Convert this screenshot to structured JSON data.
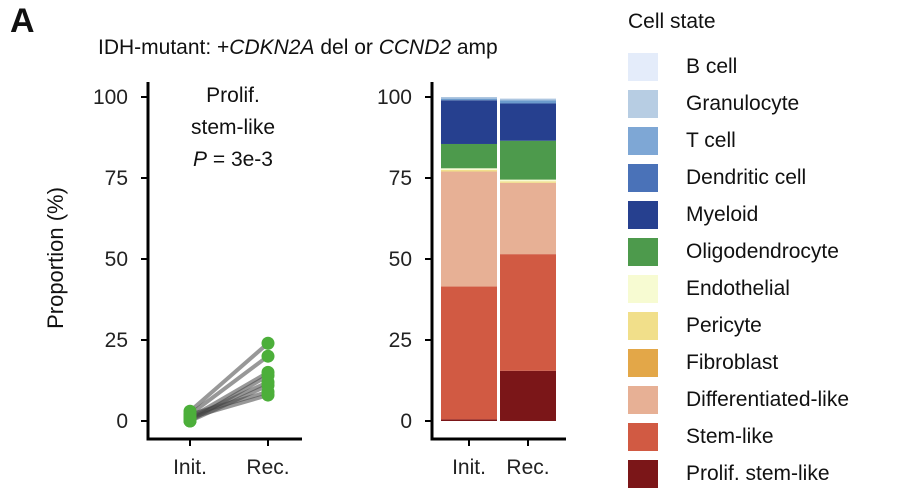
{
  "panel_label": "A",
  "title": {
    "prefix": "IDH-mutant: +",
    "gene1": "CDKN2A",
    "mid": " del or ",
    "gene2": "CCND2",
    "suffix": " amp"
  },
  "annotation": {
    "line1": "Prolif.",
    "line2": "stem-like",
    "p_symbol": "P",
    "p_rest": " = 3e-3"
  },
  "chart_data": [
    {
      "type": "scatter",
      "subtype": "paired-lines",
      "title": "Prolif. stem-like",
      "ylabel": "Proportion (%)",
      "xlabel": "",
      "categories": [
        "Init.",
        "Rec."
      ],
      "ylim": [
        0,
        100
      ],
      "yticks": [
        0,
        25,
        50,
        75,
        100
      ],
      "point_color": "#4caf3a",
      "line_color": "#444444",
      "pairs": [
        [
          3,
          24
        ],
        [
          2,
          20
        ],
        [
          1,
          15
        ],
        [
          0,
          14
        ],
        [
          1,
          12
        ],
        [
          0,
          11
        ],
        [
          2,
          9
        ],
        [
          1,
          8
        ]
      ],
      "p_value": "3e-3"
    },
    {
      "type": "bar",
      "subtype": "stacked",
      "categories": [
        "Init.",
        "Rec."
      ],
      "ylim": [
        0,
        100
      ],
      "yticks": [
        0,
        25,
        50,
        75,
        100
      ],
      "series": [
        {
          "name": "Prolif. stem-like",
          "color": "#7b1618",
          "values": [
            0.5,
            15.5
          ]
        },
        {
          "name": "Stem-like",
          "color": "#d15a43",
          "values": [
            41,
            36
          ]
        },
        {
          "name": "Differentiated-like",
          "color": "#e7b095",
          "values": [
            35.5,
            22
          ]
        },
        {
          "name": "Fibroblast",
          "color": "#e3a748",
          "values": [
            0,
            0
          ]
        },
        {
          "name": "Pericyte",
          "color": "#f1df8a",
          "values": [
            0.5,
            0.5
          ]
        },
        {
          "name": "Endothelial",
          "color": "#f7fbd2",
          "values": [
            0.5,
            0.5
          ]
        },
        {
          "name": "Oligodendrocyte",
          "color": "#4d9a4c",
          "values": [
            7.5,
            12
          ]
        },
        {
          "name": "Dendritic cell",
          "color": "#4a72b8",
          "values": [
            0,
            0
          ]
        },
        {
          "name": "Myeloid",
          "color": "#26408f",
          "values": [
            13.5,
            11.5
          ]
        },
        {
          "name": "T cell",
          "color": "#6c9bcc",
          "values": [
            0.5,
            1
          ]
        },
        {
          "name": "Granulocyte",
          "color": "#adc6e0",
          "values": [
            0.5,
            0.5
          ]
        },
        {
          "name": "B cell",
          "color": "#e4ecfa",
          "values": [
            0,
            0
          ]
        }
      ]
    }
  ],
  "legend": {
    "title": "Cell state",
    "items": [
      {
        "label": "B cell",
        "color": "#e4ecfa"
      },
      {
        "label": "Granulocyte",
        "color": "#b7cde3"
      },
      {
        "label": "T cell",
        "color": "#7ea7d5"
      },
      {
        "label": "Dendritic cell",
        "color": "#4a72b8"
      },
      {
        "label": "Myeloid",
        "color": "#26408f"
      },
      {
        "label": "Oligodendrocyte",
        "color": "#4d9a4c"
      },
      {
        "label": "Endothelial",
        "color": "#f7fbd2"
      },
      {
        "label": "Pericyte",
        "color": "#f1df8a"
      },
      {
        "label": "Fibroblast",
        "color": "#e3a748"
      },
      {
        "label": "Differentiated-like",
        "color": "#e7b095"
      },
      {
        "label": "Stem-like",
        "color": "#d15a43"
      },
      {
        "label": "Prolif. stem-like",
        "color": "#7b1618"
      }
    ]
  }
}
